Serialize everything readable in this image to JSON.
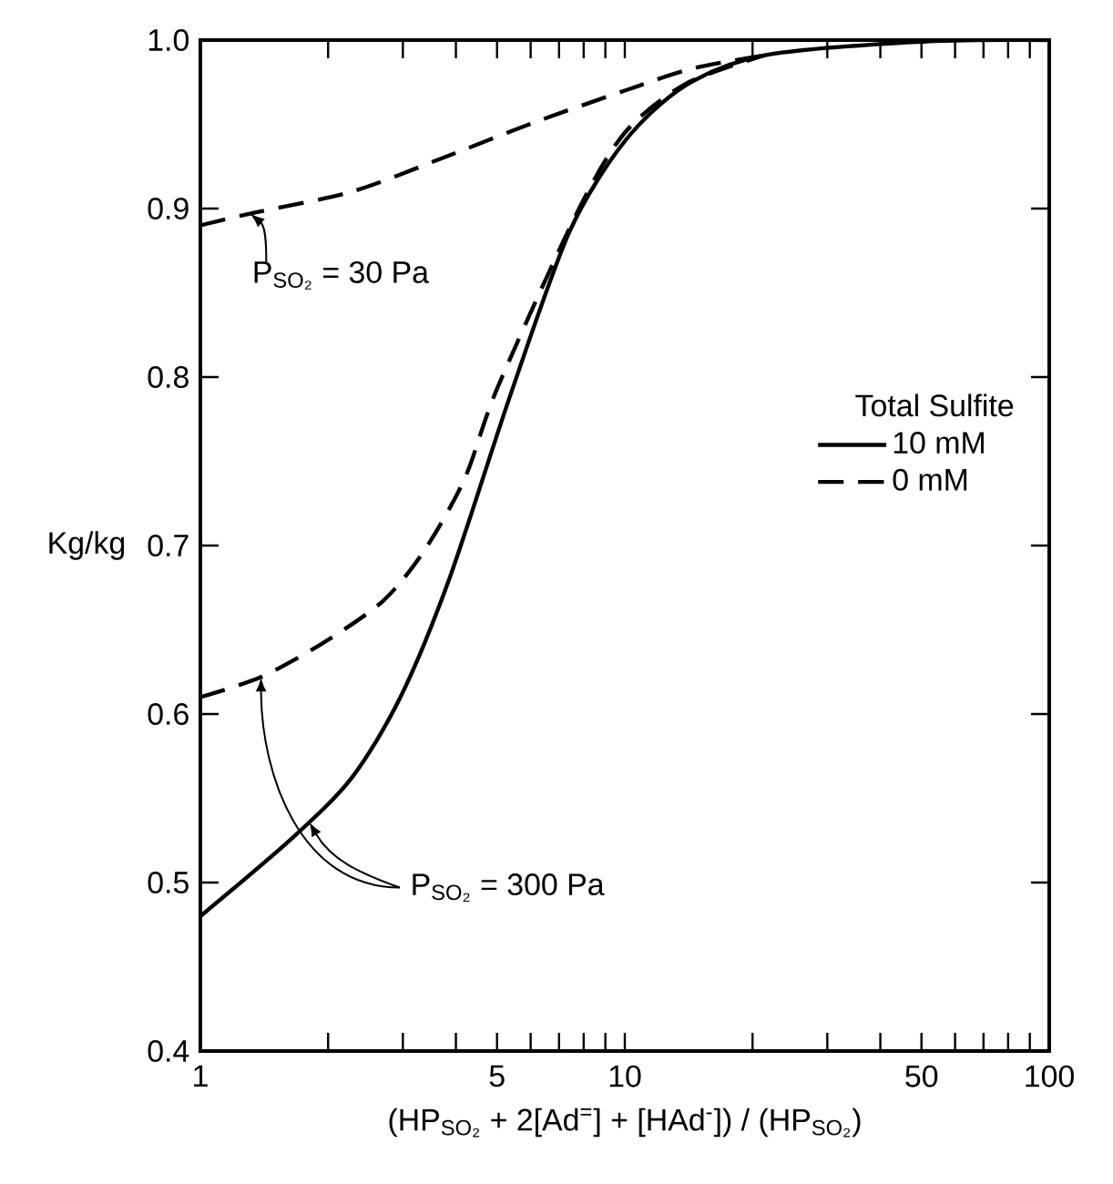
{
  "chart_data": {
    "type": "line",
    "xlabel": "(HP$_{SO₂}$ + 2[Ad$^{=}$] + [HAd$^{-}$]) / (HP$_{SO₂}$)",
    "ylabel": "Kg/kg",
    "legend_title": "Total Sulfite",
    "log": "x",
    "xlim": [
      1,
      100
    ],
    "ylim": [
      0.4,
      1.0
    ],
    "xticks": [
      1,
      {
        "value": 2,
        "label": null
      },
      {
        "value": 3,
        "label": null
      },
      {
        "value": 4,
        "label": null
      },
      5,
      {
        "value": 6,
        "label": null
      },
      {
        "value": 7,
        "label": null
      },
      {
        "value": 8,
        "label": null
      },
      {
        "value": 9,
        "label": null
      },
      10,
      {
        "value": 20,
        "label": null
      },
      {
        "value": 30,
        "label": null
      },
      {
        "value": 40,
        "label": null
      },
      50,
      {
        "value": 60,
        "label": null
      },
      {
        "value": 70,
        "label": null
      },
      {
        "value": 80,
        "label": null
      },
      {
        "value": 90,
        "label": null
      },
      100
    ],
    "yticks": [
      0.4,
      0.5,
      0.6,
      0.7,
      0.8,
      0.9,
      {
        "value": 1,
        "label": "1.0"
      }
    ],
    "legend": "right",
    "marker": "none",
    "series": [
      {
        "name": "10 mM",
        "color": "#000000",
        "line_style": "solid",
        "x": [
          1,
          1.64,
          2.27,
          2.96,
          3.87,
          5.37,
          7.4,
          10,
          13.9,
          21.4,
          50,
          100
        ],
        "values": [
          0.48,
          0.526,
          0.562,
          0.61,
          0.681,
          0.789,
          0.886,
          0.94,
          0.973,
          0.991,
          0.999,
          1.0
        ]
      },
      {
        "name": "0 mM",
        "color": "#000000",
        "line_style": "dashed",
        "x": [
          1,
          1.39,
          1.94,
          2.69,
          3.37,
          4.2,
          5.0,
          7.7,
          10,
          13.9,
          21.4
        ],
        "values": [
          0.61,
          0.622,
          0.642,
          0.667,
          0.697,
          0.74,
          0.793,
          0.897,
          0.945,
          0.974,
          0.991
        ]
      },
      {
        "color": "#000000",
        "line_style": "dashed",
        "x": [
          1,
          1.31,
          2.27,
          3.72,
          6.1,
          10,
          14.4,
          21.4
        ],
        "values": [
          0.89,
          0.897,
          0.91,
          0.93,
          0.951,
          0.97,
          0.983,
          0.991
        ]
      }
    ],
    "annotations": [
      {
        "text": "P$_{SO₂}$ = 30 Pa",
        "x": 1.31,
        "y": 0.897
      },
      {
        "text": "P$_{SO₂}$ = 300 Pa",
        "x": 1.39,
        "y": 0.622
      }
    ]
  }
}
